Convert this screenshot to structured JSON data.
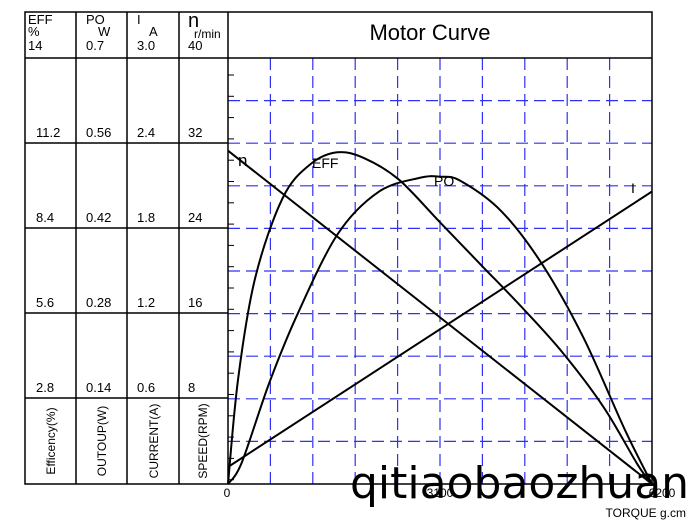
{
  "chart_data": {
    "type": "line",
    "title": "Motor Curve",
    "xlabel": "TORQUE g.cm",
    "xlim": [
      0,
      6200
    ],
    "x_ticks": [
      "0",
      "3100",
      "6200"
    ],
    "y_axes": [
      {
        "key": "eff",
        "head": [
          "EFF",
          "%"
        ],
        "top": "14",
        "ticks": [
          "11.2",
          "8.4",
          "5.6",
          "2.8"
        ],
        "label": "Efficency(%)",
        "max": 14
      },
      {
        "key": "po",
        "head": [
          "PO",
          "W"
        ],
        "top": "0.7",
        "ticks": [
          "0.56",
          "0.42",
          "0.28",
          "0.14"
        ],
        "label": "OUTOUP(W)",
        "max": 0.7
      },
      {
        "key": "current",
        "head": [
          "I",
          "A"
        ],
        "top": "3.0",
        "ticks": [
          "2.4",
          "1.8",
          "1.2",
          "0.6"
        ],
        "label": "CURRENT(A)",
        "max": 3.0
      },
      {
        "key": "speed",
        "head": [
          "n",
          "r/min"
        ],
        "top": "40",
        "ticks": [
          "32",
          "24",
          "16",
          "8"
        ],
        "label": "SPEED(RPM)",
        "max": 40
      }
    ],
    "series": [
      {
        "name": "n",
        "axis": "speed",
        "x": [
          0,
          6200
        ],
        "y": [
          31.3,
          0
        ]
      },
      {
        "name": "EFF",
        "axis": "eff",
        "x": [
          0,
          150,
          400,
          800,
          1200,
          1600,
          2000,
          2500,
          3100,
          3700,
          4300,
          4900,
          5500,
          6000,
          6200
        ],
        "y": [
          0,
          3.5,
          6.8,
          9.4,
          10.5,
          10.9,
          10.7,
          10.0,
          8.6,
          7.2,
          5.8,
          4.3,
          2.5,
          0.6,
          0
        ]
      },
      {
        "name": "PO",
        "axis": "po",
        "x": [
          0,
          200,
          600,
          1000,
          1600,
          2200,
          2800,
          3100,
          3400,
          4000,
          4600,
          5200,
          5800,
          6200
        ],
        "y": [
          0,
          0.035,
          0.165,
          0.275,
          0.41,
          0.48,
          0.503,
          0.505,
          0.498,
          0.448,
          0.36,
          0.24,
          0.09,
          0
        ]
      },
      {
        "name": "I",
        "axis": "current",
        "x": [
          0,
          6200
        ],
        "y": [
          0.12,
          2.06
        ]
      }
    ],
    "grid": true
  },
  "watermark": "qitiaobaozhuan",
  "colors": {
    "grid": "#3131f2",
    "curve": "#000000",
    "frame": "#000000"
  }
}
